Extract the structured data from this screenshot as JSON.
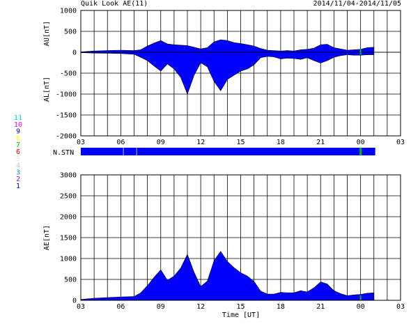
{
  "header": {
    "title": "Quik Look AE(11)",
    "date_range": "2014/11/04-2014/11/05"
  },
  "station_legend": {
    "label": "N.STN",
    "items": [
      {
        "text": "11",
        "color": "#00e0e0"
      },
      {
        "text": "10",
        "color": "#ff00ff"
      },
      {
        "text": "9",
        "color": "#0000ff"
      },
      {
        "text": "8",
        "color": "#ffff00"
      },
      {
        "text": "7",
        "color": "#00c000"
      },
      {
        "text": "6",
        "color": "#ff0000"
      },
      {
        "text": "5",
        "color": "#ffffff"
      },
      {
        "text": "4",
        "color": "#c0c0c0"
      },
      {
        "text": "3",
        "color": "#00a0a0"
      },
      {
        "text": "2",
        "color": "#c000c0"
      },
      {
        "text": "1",
        "color": "#0000c0"
      }
    ]
  },
  "chart_data": [
    {
      "type": "area",
      "name": "AU/AL",
      "ylabel_upper": "AU[nT]",
      "ylabel_lower": "AL[nT]",
      "xlabel": "",
      "ylim": [
        -2000,
        1000
      ],
      "xlim": [
        3,
        27
      ],
      "y_ticks": [
        "1000",
        "500",
        "0",
        "-500",
        "-1000",
        "-1500",
        "-2000"
      ],
      "x_ticks": [
        "03",
        "06",
        "09",
        "12",
        "15",
        "18",
        "21",
        "00",
        "03"
      ],
      "grid": true,
      "fill_color": "#0000ff",
      "series": [
        {
          "label": "AU",
          "x": [
            3.0,
            4.0,
            5.0,
            6.0,
            7.0,
            7.5,
            8.0,
            8.5,
            9.0,
            9.5,
            10.0,
            10.5,
            11.0,
            11.5,
            12.0,
            12.5,
            13.0,
            13.5,
            14.0,
            14.5,
            15.0,
            15.5,
            16.0,
            16.5,
            17.0,
            17.5,
            18.0,
            18.5,
            19.0,
            19.5,
            20.0,
            20.5,
            21.0,
            21.5,
            22.0,
            22.5,
            23.0,
            23.5,
            24.0,
            24.5,
            25.0
          ],
          "values": [
            10,
            30,
            40,
            50,
            40,
            60,
            150,
            220,
            280,
            200,
            180,
            170,
            160,
            120,
            80,
            110,
            250,
            300,
            280,
            230,
            210,
            180,
            150,
            90,
            50,
            40,
            30,
            40,
            30,
            60,
            70,
            100,
            180,
            190,
            110,
            80,
            50,
            60,
            70,
            110,
            120
          ]
        },
        {
          "label": "AL",
          "x": [
            3.0,
            4.0,
            5.0,
            6.0,
            7.0,
            7.5,
            8.0,
            8.5,
            9.0,
            9.5,
            10.0,
            10.5,
            11.0,
            11.5,
            12.0,
            12.5,
            13.0,
            13.5,
            14.0,
            14.5,
            15.0,
            15.5,
            16.0,
            16.5,
            17.0,
            17.5,
            18.0,
            18.5,
            19.0,
            19.5,
            20.0,
            20.5,
            21.0,
            21.5,
            22.0,
            22.5,
            23.0,
            23.5,
            24.0,
            24.5,
            25.0
          ],
          "values": [
            -10,
            -20,
            -25,
            -30,
            -50,
            -120,
            -200,
            -330,
            -450,
            -280,
            -400,
            -600,
            -1000,
            -550,
            -250,
            -350,
            -700,
            -920,
            -650,
            -550,
            -450,
            -400,
            -300,
            -130,
            -100,
            -110,
            -160,
            -140,
            -150,
            -170,
            -130,
            -200,
            -260,
            -200,
            -120,
            -80,
            -60,
            -70,
            -70,
            -60,
            -60
          ]
        }
      ]
    },
    {
      "type": "area",
      "name": "AE",
      "ylabel": "AE[nT]",
      "xlabel": "Time [UT]",
      "ylim": [
        0,
        3000
      ],
      "xlim": [
        3,
        27
      ],
      "y_ticks": [
        "3000",
        "2500",
        "2000",
        "1500",
        "1000",
        "500",
        "0"
      ],
      "x_ticks": [
        "03",
        "06",
        "09",
        "12",
        "15",
        "18",
        "21",
        "00",
        "03"
      ],
      "grid": true,
      "fill_color": "#0000ff",
      "series": [
        {
          "label": "AE",
          "x": [
            3.0,
            4.0,
            5.0,
            6.0,
            7.0,
            7.5,
            8.0,
            8.5,
            9.0,
            9.5,
            10.0,
            10.5,
            11.0,
            11.5,
            12.0,
            12.5,
            13.0,
            13.5,
            14.0,
            14.5,
            15.0,
            15.5,
            16.0,
            16.5,
            17.0,
            17.5,
            18.0,
            18.5,
            19.0,
            19.5,
            20.0,
            20.5,
            21.0,
            21.5,
            22.0,
            22.5,
            23.0,
            23.5,
            24.0,
            24.5,
            25.0
          ],
          "values": [
            20,
            50,
            65,
            80,
            90,
            180,
            350,
            550,
            730,
            480,
            580,
            770,
            1100,
            670,
            330,
            460,
            950,
            1170,
            930,
            780,
            660,
            580,
            450,
            220,
            150,
            150,
            190,
            180,
            180,
            230,
            200,
            300,
            440,
            390,
            230,
            160,
            110,
            130,
            140,
            170,
            180
          ]
        }
      ]
    }
  ],
  "station_bar": {
    "xlim": [
      3,
      27
    ],
    "data_end_hour": 25.1,
    "base_color": "#0000ff",
    "gap_hours": [
      6.2,
      7.2
    ],
    "gap_color": "#8080ff",
    "green_hour": 24.0,
    "green_color": "#00c000"
  }
}
